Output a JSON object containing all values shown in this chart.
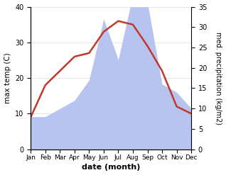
{
  "months": [
    "Jan",
    "Feb",
    "Mar",
    "Apr",
    "May",
    "Jun",
    "Jul",
    "Aug",
    "Sep",
    "Oct",
    "Nov",
    "Dec"
  ],
  "temperature": [
    9,
    18,
    22,
    26,
    27,
    33,
    36,
    35,
    29,
    22,
    12,
    10
  ],
  "precipitation": [
    8,
    8,
    10,
    12,
    17,
    32,
    22,
    38,
    36,
    16,
    14,
    10
  ],
  "temp_color": "#c0392b",
  "precip_color": "#b8c4f0",
  "left_ylim": [
    0,
    40
  ],
  "right_ylim": [
    0,
    35
  ],
  "left_yticks": [
    0,
    10,
    20,
    30,
    40
  ],
  "right_yticks": [
    0,
    5,
    10,
    15,
    20,
    25,
    30,
    35
  ],
  "xlabel": "date (month)",
  "ylabel_left": "max temp (C)",
  "ylabel_right": "med. precipitation (kg/m2)",
  "background_color": "#ffffff",
  "temp_linewidth": 1.8,
  "figsize": [
    3.18,
    2.47
  ],
  "dpi": 100
}
